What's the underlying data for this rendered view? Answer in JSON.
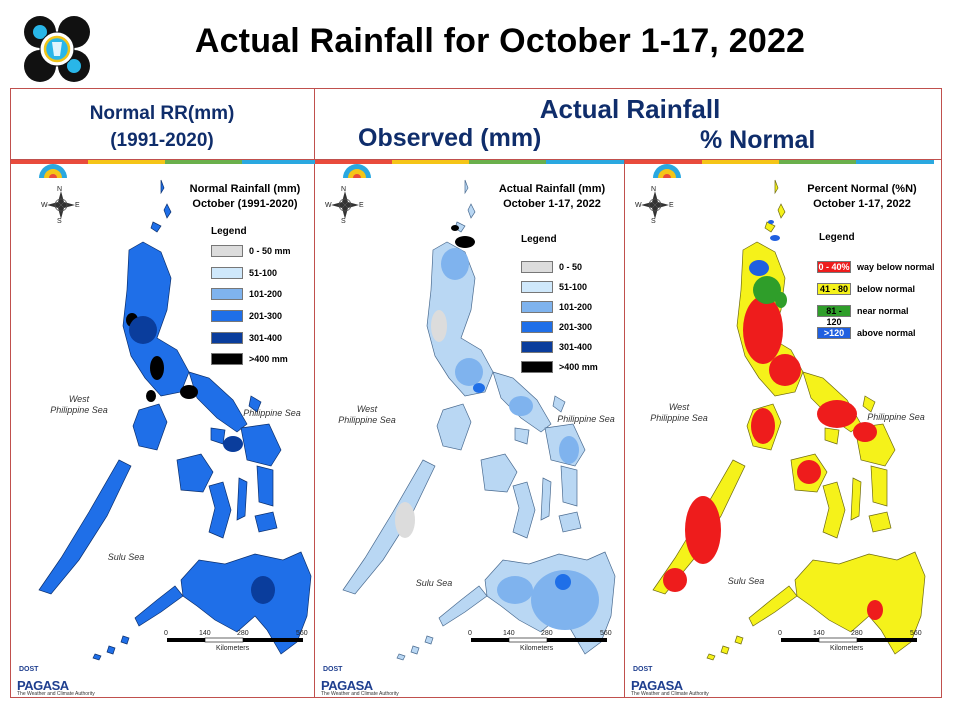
{
  "title": "Actual Rainfall for October 1-17, 2022",
  "headers": {
    "normal_line1": "Normal RR(mm)",
    "normal_line2": "(1991-2020)",
    "actual": "Actual Rainfall",
    "observed": "Observed (mm)",
    "percent": "% Normal"
  },
  "compass": {
    "n": "N",
    "s": "S",
    "e": "E",
    "w": "W"
  },
  "seas": {
    "west_line1": "West",
    "west_line2": "Philippine Sea",
    "philippine": "Philippine Sea",
    "sulu": "Sulu Sea"
  },
  "scale": {
    "ticks": [
      "0",
      "140",
      "280",
      "560"
    ],
    "unit": "Kilometers"
  },
  "brand": {
    "small": "DOST",
    "name": "PAGASA",
    "tagline": "The Weather and Climate Authority"
  },
  "panels": [
    {
      "title_line1": "Normal Rainfall (mm)",
      "title_line2": "October (1991-2020)",
      "legend_title": "Legend",
      "legend": [
        {
          "label": "0 - 50 mm",
          "color": "#dcdcdc",
          "swatch_text": ""
        },
        {
          "label": "51-100",
          "color": "#cfe8fb",
          "swatch_text": ""
        },
        {
          "label": "101-200",
          "color": "#7fb3ee",
          "swatch_text": ""
        },
        {
          "label": "201-300",
          "color": "#1f6fe8",
          "swatch_text": ""
        },
        {
          "label": "301-400",
          "color": "#0a3d9c",
          "swatch_text": ""
        },
        {
          "label": ">400 mm",
          "color": "#000000",
          "swatch_text": ""
        }
      ]
    },
    {
      "title_line1": "Actual Rainfall (mm)",
      "title_line2": "October 1-17, 2022",
      "legend_title": "Legend",
      "legend": [
        {
          "label": "0 - 50",
          "color": "#dcdcdc",
          "swatch_text": ""
        },
        {
          "label": "51-100",
          "color": "#cfe8fb",
          "swatch_text": ""
        },
        {
          "label": "101-200",
          "color": "#7fb3ee",
          "swatch_text": ""
        },
        {
          "label": "201-300",
          "color": "#1f6fe8",
          "swatch_text": ""
        },
        {
          "label": "301-400",
          "color": "#0a3d9c",
          "swatch_text": ""
        },
        {
          "label": ">400 mm",
          "color": "#000000",
          "swatch_text": ""
        }
      ]
    },
    {
      "title_line1": "Percent Normal (%N)",
      "title_line2": "October 1-17, 2022",
      "legend_title": "Legend",
      "legend": [
        {
          "label": "way below normal",
          "color": "#ee1c1c",
          "swatch_text": "0 - 40%"
        },
        {
          "label": "below normal",
          "color": "#f5f21a",
          "swatch_text": "41 - 80"
        },
        {
          "label": "near normal",
          "color": "#2f9e2a",
          "swatch_text": "81 - 120"
        },
        {
          "label": "above normal",
          "color": "#1f5fe0",
          "swatch_text": ">120"
        }
      ]
    }
  ],
  "colors": {
    "frame": "#c0504d",
    "header_text": "#0f2d6b"
  }
}
